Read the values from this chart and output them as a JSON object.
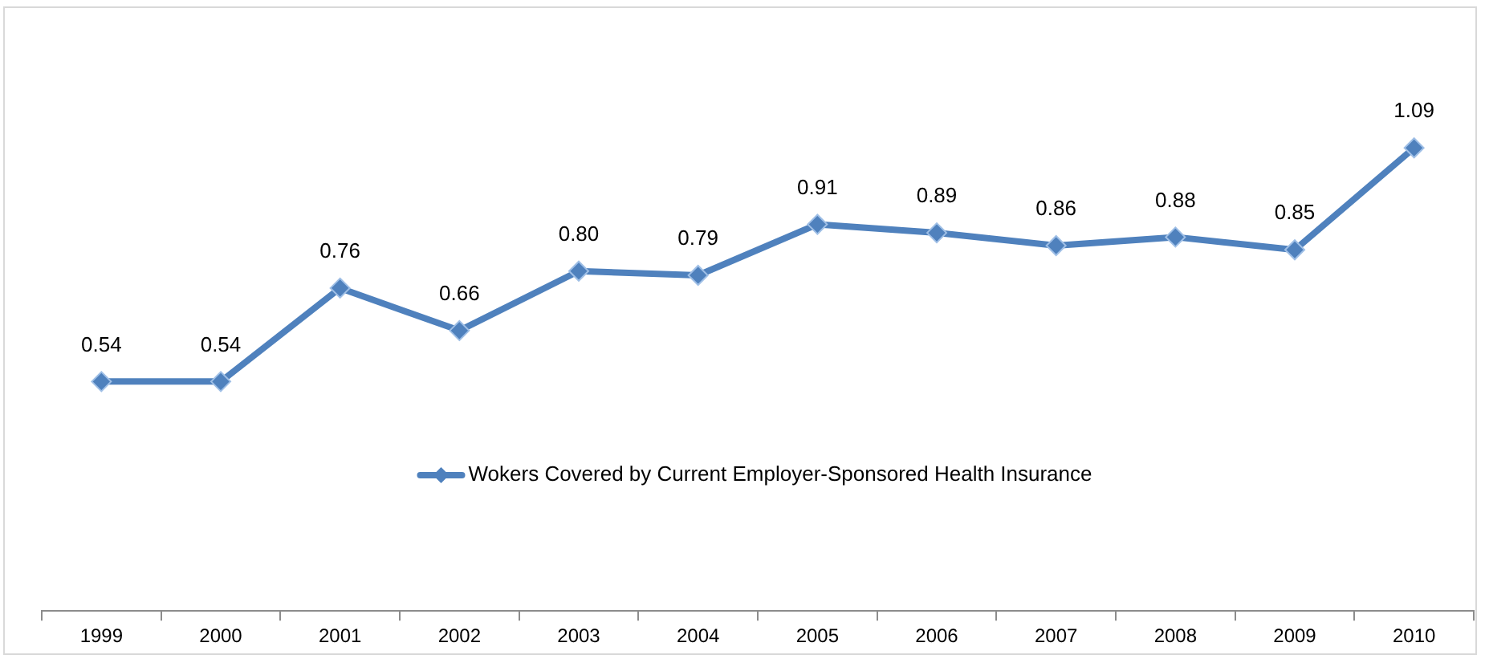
{
  "chart_data": {
    "type": "line",
    "categories": [
      "1999",
      "2000",
      "2001",
      "2002",
      "2003",
      "2004",
      "2005",
      "2006",
      "2007",
      "2008",
      "2009",
      "2010"
    ],
    "series": [
      {
        "name": "Wokers Covered by Current Employer-Sponsored Health Insurance",
        "color": "#4f81bd",
        "values": [
          0.54,
          0.54,
          0.76,
          0.66,
          0.8,
          0.79,
          0.91,
          0.89,
          0.86,
          0.88,
          0.85,
          1.09
        ],
        "value_labels": [
          "0.54",
          "0.54",
          "0.76",
          "0.66",
          "0.80",
          "0.79",
          "0.91",
          "0.89",
          "0.86",
          "0.88",
          "0.85",
          "1.09"
        ]
      }
    ],
    "tick_labels": "x",
    "grid": false,
    "legend": "center",
    "marker": "diamond",
    "line_style": "solid"
  }
}
